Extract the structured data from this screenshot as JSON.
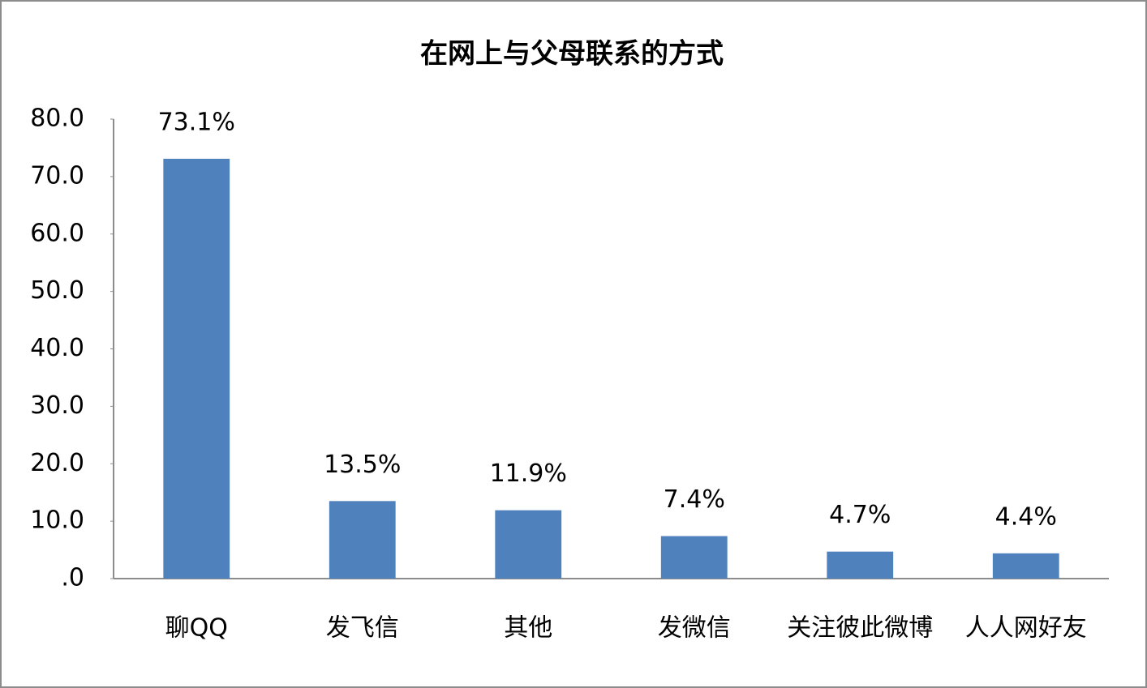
{
  "chart_data": {
    "type": "bar",
    "title": "在网上与父母联系的方式",
    "categories": [
      "聊QQ",
      "发飞信",
      "其他",
      "发微信",
      "关注彼此微博",
      "人人网好友"
    ],
    "values": [
      73.1,
      13.5,
      11.9,
      7.4,
      4.7,
      4.4
    ],
    "value_labels": [
      "73.1%",
      "13.5%",
      "11.9%",
      "7.4%",
      "4.7%",
      "4.4%"
    ],
    "color": "#4f81bd",
    "ylim": [
      0,
      80
    ],
    "yticks": [
      {
        "value": 0,
        "label": ".0"
      },
      {
        "value": 10,
        "label": "10.0"
      },
      {
        "value": 20,
        "label": "20.0"
      },
      {
        "value": 30,
        "label": "30.0"
      },
      {
        "value": 40,
        "label": "40.0"
      },
      {
        "value": 50,
        "label": "50.0"
      },
      {
        "value": 60,
        "label": "60.0"
      },
      {
        "value": 70,
        "label": "70.0"
      },
      {
        "value": 80,
        "label": "80.0"
      }
    ],
    "grid": false
  }
}
